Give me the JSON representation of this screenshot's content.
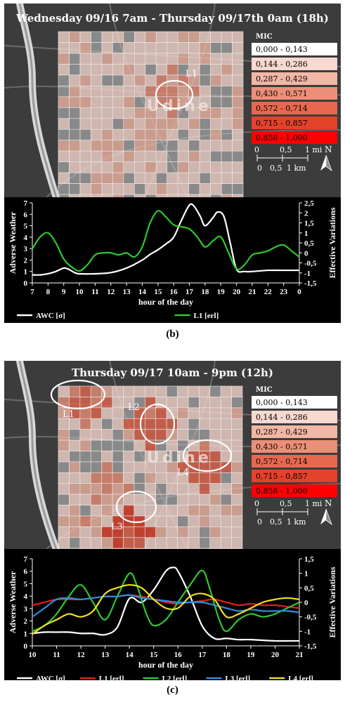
{
  "panel_b": {
    "map_title": "Wednesday 09/16 7am - Thursday 09/17th 0am (18h)",
    "city_label": "Udine",
    "legend_title": "MIC",
    "legend": [
      {
        "label": "0,000 - 0,143",
        "color": "#ffffff"
      },
      {
        "label": "0,144 - 0,286",
        "color": "#f8d9cf"
      },
      {
        "label": "0,287 - 0,429",
        "color": "#f2b7a5"
      },
      {
        "label": "0,430 - 0,571",
        "color": "#ec8f78"
      },
      {
        "label": "0,572 - 0,714",
        "color": "#e7684f"
      },
      {
        "label": "0,715 - 0,857",
        "color": "#e3422b"
      },
      {
        "label": "0,858 - 1,000",
        "color": "#ff0000"
      }
    ],
    "scale_mi": [
      "0",
      "0,5",
      "1 mi"
    ],
    "scale_km": [
      "0",
      "0,5",
      "1 km"
    ],
    "north": "N",
    "location_labels": [
      "L1"
    ],
    "caption": "(b)"
  },
  "panel_c": {
    "map_title": "Thursday 09/17 10am - 9pm (12h)",
    "city_label": "Udine",
    "legend_title": "MIC",
    "legend": [
      {
        "label": "0,000 - 0,143",
        "color": "#ffffff"
      },
      {
        "label": "0,144 - 0,286",
        "color": "#f8d9cf"
      },
      {
        "label": "0,287 - 0,429",
        "color": "#f2b7a5"
      },
      {
        "label": "0,430 - 0,571",
        "color": "#ec8f78"
      },
      {
        "label": "0,572 - 0,714",
        "color": "#e7684f"
      },
      {
        "label": "0,715 - 0,857",
        "color": "#e3422b"
      },
      {
        "label": "0,858 - 1,000",
        "color": "#ff0000"
      }
    ],
    "scale_mi": [
      "0",
      "0,5",
      "1 mi"
    ],
    "scale_km": [
      "0",
      "0,5",
      "1 km"
    ],
    "north": "N",
    "location_labels": [
      "L1",
      "L2",
      "L4",
      "L3"
    ],
    "caption": "(c)"
  },
  "chart_data": [
    {
      "type": "line",
      "xlabel": "hour of the day",
      "ylabel": "Adverse Weather",
      "y2label": "Effective Variations",
      "x_ticks": [
        "7",
        "8",
        "9",
        "10",
        "11",
        "12",
        "13",
        "14",
        "15",
        "16",
        "17",
        "18",
        "19",
        "20",
        "21",
        "22",
        "23",
        "0"
      ],
      "ylim": [
        0,
        7
      ],
      "y_ticks": [
        "0",
        "1",
        "2",
        "3",
        "4",
        "5",
        "6",
        "7"
      ],
      "y2lim": [
        -1.5,
        2.5
      ],
      "y2_ticks": [
        "-1,5",
        "-1",
        "-0,5",
        "0",
        "0,5",
        "1",
        "1,5",
        "2",
        "2,5"
      ],
      "series": [
        {
          "name": "AWC [σ]",
          "axis": "left",
          "color": "#ffffff",
          "x": [
            7,
            7.5,
            8,
            8.5,
            9,
            9.3,
            9.7,
            10,
            11,
            12,
            13,
            14,
            14.5,
            15,
            15.5,
            16,
            16.5,
            17,
            17.3,
            17.7,
            18,
            18.5,
            18.8,
            19.2,
            19.6,
            20,
            20.5,
            21,
            22,
            23,
            24
          ],
          "y": [
            0.7,
            0.7,
            0.8,
            1.0,
            1.3,
            1.2,
            0.9,
            0.8,
            0.8,
            0.9,
            1.3,
            2.0,
            2.5,
            2.9,
            3.4,
            4.0,
            5.5,
            6.8,
            6.7,
            5.8,
            5.0,
            5.7,
            6.2,
            5.8,
            3.5,
            1.2,
            1.0,
            1.0,
            1.1,
            1.1,
            1.1
          ]
        },
        {
          "name": "L1 [erl]",
          "axis": "right",
          "color": "#2ec82e",
          "x": [
            7,
            7.5,
            8,
            8.5,
            9,
            9.5,
            10,
            10.5,
            11,
            11.5,
            12,
            12.5,
            13,
            13.5,
            14,
            14.5,
            15,
            15.5,
            16,
            16.5,
            17,
            17.5,
            18,
            18.5,
            19,
            19.5,
            20,
            20.5,
            21,
            21.5,
            22,
            22.5,
            23,
            23.5,
            24
          ],
          "y": [
            0.2,
            0.8,
            1.0,
            0.5,
            -0.3,
            -0.7,
            -0.9,
            -0.6,
            -0.1,
            0.0,
            0.0,
            -0.1,
            0.0,
            -0.2,
            0.3,
            1.5,
            2.1,
            1.8,
            1.4,
            1.3,
            1.2,
            0.8,
            0.3,
            0.6,
            0.8,
            0.0,
            -0.8,
            -0.6,
            -0.1,
            0.0,
            0.1,
            0.3,
            0.4,
            0.1,
            -0.2
          ]
        }
      ]
    },
    {
      "type": "line",
      "xlabel": "hour of the day",
      "ylabel": "Adverse Weather",
      "y2label": "Effective Variations",
      "x_ticks": [
        "10",
        "11",
        "12",
        "13",
        "14",
        "15",
        "16",
        "17",
        "18",
        "19",
        "20",
        "21"
      ],
      "ylim": [
        0,
        7
      ],
      "y_ticks": [
        "0",
        "1",
        "2",
        "3",
        "4",
        "5",
        "6",
        "7"
      ],
      "y2lim": [
        -1.5,
        1.5
      ],
      "y2_ticks": [
        "-1,5",
        "-1",
        "-0,5",
        "0",
        "0,5",
        "1",
        "1,5"
      ],
      "series": [
        {
          "name": "AWC [σ]",
          "axis": "left",
          "color": "#ffffff",
          "x": [
            10,
            10.5,
            11,
            11.5,
            12,
            12.5,
            13,
            13.5,
            14,
            14.5,
            15,
            15.5,
            15.8,
            16,
            16.5,
            17,
            17.5,
            18,
            18.5,
            19,
            20,
            21
          ],
          "y": [
            1.0,
            1.1,
            1.1,
            1.1,
            1.0,
            1.0,
            0.9,
            1.5,
            3.8,
            3.5,
            4.5,
            6.0,
            6.3,
            6.0,
            4.0,
            1.6,
            0.6,
            0.6,
            0.5,
            0.5,
            0.4,
            0.4
          ]
        },
        {
          "name": "L1 [erl]",
          "axis": "right",
          "color": "#e02020",
          "x": [
            10,
            10.5,
            11,
            11.5,
            12,
            12.5,
            13,
            13.5,
            14,
            14.5,
            15,
            15.5,
            16,
            16.5,
            17,
            17.5,
            18,
            18.5,
            19,
            19.5,
            20,
            20.5,
            21
          ],
          "y": [
            -0.1,
            0.0,
            0.1,
            0.1,
            0.1,
            0.15,
            0.2,
            0.2,
            0.25,
            0.2,
            0.1,
            0.0,
            -0.05,
            0.0,
            0.05,
            0.1,
            0.0,
            -0.1,
            -0.05,
            -0.1,
            -0.1,
            -0.15,
            -0.2
          ]
        },
        {
          "name": "L2 [erl]",
          "axis": "right",
          "color": "#2ec82e",
          "x": [
            10,
            10.5,
            11,
            11.5,
            12,
            12.5,
            13,
            13.5,
            14,
            14.3,
            14.7,
            15,
            15.5,
            16,
            16.5,
            17,
            17.3,
            17.7,
            18,
            18.5,
            19,
            19.5,
            20,
            20.5,
            21
          ],
          "y": [
            -1.0,
            -0.8,
            -0.4,
            0.2,
            0.6,
            0.0,
            -0.6,
            0.2,
            1.0,
            0.6,
            -0.4,
            -0.8,
            -0.6,
            0.0,
            0.6,
            1.1,
            0.5,
            -0.6,
            -1.0,
            -0.6,
            -0.4,
            -0.5,
            -0.4,
            -0.2,
            0.0
          ]
        },
        {
          "name": "L3 [erl]",
          "axis": "right",
          "color": "#2f8fd8",
          "x": [
            10,
            10.5,
            11,
            11.5,
            12,
            12.5,
            13,
            13.5,
            14,
            14.5,
            15,
            15.5,
            16,
            16.5,
            17,
            17.5,
            18,
            18.5,
            19,
            19.5,
            20,
            20.5,
            21
          ],
          "y": [
            -0.5,
            -0.2,
            0.1,
            0.15,
            0.1,
            0.15,
            0.2,
            0.2,
            0.25,
            0.15,
            0.1,
            0.05,
            0.0,
            0.0,
            0.0,
            -0.1,
            -0.2,
            -0.3,
            -0.25,
            -0.3,
            -0.3,
            -0.3,
            -0.35
          ]
        },
        {
          "name": "L4 [erl]",
          "axis": "right",
          "color": "#f0e020",
          "x": [
            10,
            10.5,
            11,
            11.5,
            12,
            12.5,
            13,
            13.5,
            14,
            14.5,
            15,
            15.5,
            16,
            16.5,
            17,
            17.5,
            18,
            18.5,
            19,
            19.5,
            20,
            20.5,
            21
          ],
          "y": [
            -1.1,
            -0.8,
            -0.6,
            -0.4,
            -0.5,
            -0.3,
            0.3,
            0.5,
            0.6,
            0.5,
            0.1,
            -0.2,
            -0.2,
            0.2,
            0.3,
            0.1,
            -0.5,
            -0.4,
            -0.2,
            0.0,
            0.1,
            0.15,
            0.1
          ]
        }
      ]
    }
  ]
}
